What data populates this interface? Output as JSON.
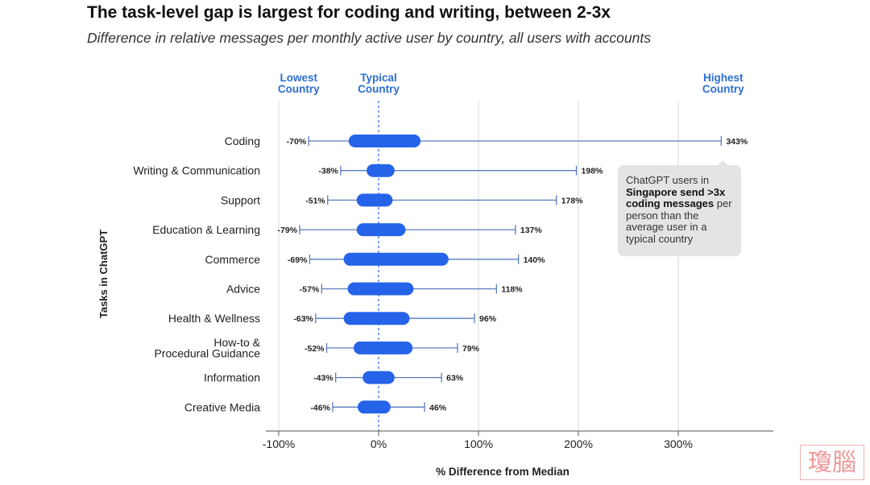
{
  "chart_data": {
    "type": "range",
    "title": "The task-level gap is largest for coding and writing, between 2-3x",
    "subtitle": "Difference in relative messages per monthly active user by country, all users with accounts",
    "xlabel": "% Difference from Median",
    "ylabel": "Tasks in ChatGPT",
    "xlim": [
      -100,
      385
    ],
    "xticks": [
      {
        "value": -100,
        "label": "-100%"
      },
      {
        "value": 0,
        "label": "0%"
      },
      {
        "value": 100,
        "label": "100%"
      },
      {
        "value": 200,
        "label": "200%"
      },
      {
        "value": 300,
        "label": "300%"
      }
    ],
    "column_headers": {
      "lowest": [
        "Lowest",
        "Country"
      ],
      "typical": [
        "Typical",
        "Country"
      ],
      "highest": [
        "Highest",
        "Country"
      ]
    },
    "header_positions": {
      "lowest": -80,
      "typical": 0,
      "highest": 345
    },
    "categories": [
      {
        "label": [
          "Coding"
        ],
        "min": -70,
        "max": 343,
        "min_label": "-70%",
        "max_label": "343%",
        "iqr": [
          -30,
          42
        ]
      },
      {
        "label": [
          "Writing & Communication"
        ],
        "min": -38,
        "max": 198,
        "min_label": "-38%",
        "max_label": "198%",
        "iqr": [
          -12,
          16
        ]
      },
      {
        "label": [
          "Support"
        ],
        "min": -51,
        "max": 178,
        "min_label": "-51%",
        "max_label": "178%",
        "iqr": [
          -22,
          14
        ]
      },
      {
        "label": [
          "Education & Learning"
        ],
        "min": -79,
        "max": 137,
        "min_label": "-79%",
        "max_label": "137%",
        "iqr": [
          -22,
          27
        ]
      },
      {
        "label": [
          "Commerce"
        ],
        "min": -69,
        "max": 140,
        "min_label": "-69%",
        "max_label": "140%",
        "iqr": [
          -35,
          70
        ]
      },
      {
        "label": [
          "Advice"
        ],
        "min": -57,
        "max": 118,
        "min_label": "-57%",
        "max_label": "118%",
        "iqr": [
          -31,
          35
        ]
      },
      {
        "label": [
          "Health & Wellness"
        ],
        "min": -63,
        "max": 96,
        "min_label": "-63%",
        "max_label": "96%",
        "iqr": [
          -35,
          31
        ]
      },
      {
        "label": [
          "How-to &",
          "Procedural Guidance"
        ],
        "min": -52,
        "max": 79,
        "min_label": "-52%",
        "max_label": "79%",
        "iqr": [
          -25,
          34
        ]
      },
      {
        "label": [
          "Information"
        ],
        "min": -43,
        "max": 63,
        "min_label": "-43%",
        "max_label": "63%",
        "iqr": [
          -16,
          16
        ]
      },
      {
        "label": [
          "Creative Media"
        ],
        "min": -46,
        "max": 46,
        "min_label": "-46%",
        "max_label": "46%",
        "iqr": [
          -21,
          12
        ]
      }
    ],
    "annotation": {
      "pre": "ChatGPT users in",
      "bold": "Singapore send >3x coding messages",
      "post": "per person than the average user in a typical country"
    },
    "colors": {
      "bar": "#2563e8",
      "whisker": "#5a7abf",
      "header": "#2c6fd1",
      "grid": "#d9d9d9",
      "typical_line": "#3b74d6"
    }
  },
  "watermark": "瓊腦"
}
